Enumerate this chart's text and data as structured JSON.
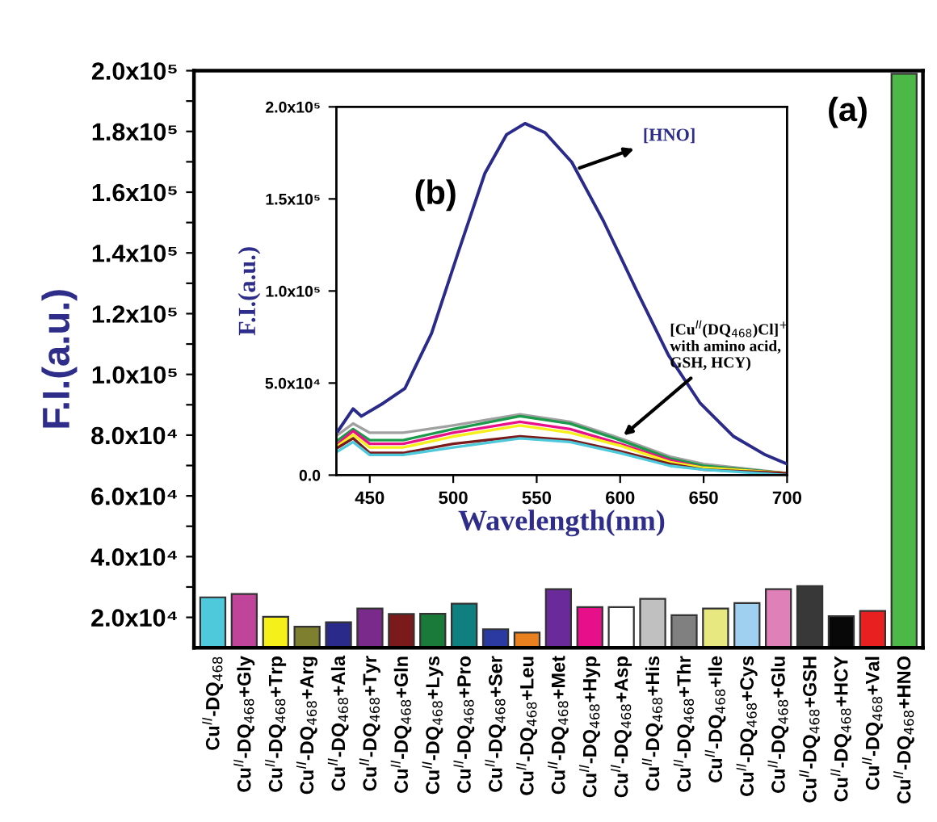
{
  "chart_data": [
    {
      "type": "bar",
      "ylabel": "F.I.(a.u.)",
      "annotations": [
        "(a)"
      ],
      "categories": [
        "Cu$^{II}$-DQ$_{468}$",
        "Cu$^{II}$-DQ$_{468}$+Gly",
        "Cu$^{II}$-DQ$_{468}$+Trp",
        "Cu$^{II}$-DQ$_{468}$+Arg",
        "Cu$^{II}$-DQ$_{468}$+Ala",
        "Cu$^{II}$-DQ$_{468}$+Tyr",
        "Cu$^{II}$-DQ$_{468}$+Gln",
        "Cu$^{II}$-DQ$_{468}$+Lys",
        "Cu$^{II}$-DQ$_{468}$+Pro",
        "Cu$^{II}$-DQ$_{468}$+Ser",
        "Cu$^{II}$-DQ$_{468}$+Leu",
        "Cu$^{II}$-DQ$_{468}$+Met",
        "Cu$^{II}$-DQ$_{468}$+Hyp",
        "Cu$^{II}$-DQ$_{468}$+Asp",
        "Cu$^{II}$-DQ$_{468}$+His",
        "Cu$^{II}$-DQ$_{468}$+Thr",
        "Cu$^{II}$-DQ$_{468}$+Ile",
        "Cu$^{II}$-DQ$_{468}$+Cys",
        "Cu$^{II}$-DQ$_{468}$+Glu",
        "Cu$^{II}$-DQ$_{468}$+GSH",
        "Cu$^{II}$-DQ$_{468}$+HCY",
        "Cu$^{II}$-DQ$_{468}$+Val",
        "Cu$^{II}$-DQ$_{468}$+HNO"
      ],
      "values": [
        26600,
        27700,
        20200,
        16900,
        18400,
        22900,
        21100,
        21200,
        24500,
        16100,
        15000,
        29300,
        23400,
        23400,
        26100,
        20700,
        22900,
        24700,
        29300,
        30300,
        20400,
        22100,
        199000
      ],
      "colors": [
        "#4ec9dc",
        "#c0449a",
        "#f5ef1a",
        "#7f7f30",
        "#2a2a8a",
        "#7a2a8a",
        "#7a1a1a",
        "#1a7a3a",
        "#0f7f7f",
        "#2a3aa0",
        "#e88020",
        "#6a2a9a",
        "#e8108a",
        "#ffffff",
        "#c0c0c0",
        "#808080",
        "#e8e880",
        "#a0d0f0",
        "#e080b8",
        "#383838",
        "#080808",
        "#e82020",
        "#4cb848"
      ],
      "ylim": [
        10000,
        200000
      ],
      "yticks": [
        {
          "value": 20000,
          "label": "2.0x10⁴"
        },
        {
          "value": 30000,
          "label": null
        },
        {
          "value": 40000,
          "label": "4.0x10⁴"
        },
        {
          "value": 50000,
          "label": null
        },
        {
          "value": 60000,
          "label": "6.0x10⁴"
        },
        {
          "value": 70000,
          "label": null
        },
        {
          "value": 80000,
          "label": "8.0x10⁴"
        },
        {
          "value": 90000,
          "label": null
        },
        {
          "value": 100000,
          "label": "1.0x10⁵"
        },
        {
          "value": 110000,
          "label": null
        },
        {
          "value": 120000,
          "label": "1.2x10⁵"
        },
        {
          "value": 130000,
          "label": null
        },
        {
          "value": 140000,
          "label": "1.4x10⁵"
        },
        {
          "value": 150000,
          "label": null
        },
        {
          "value": 160000,
          "label": "1.6x10⁵"
        },
        {
          "value": 170000,
          "label": null
        },
        {
          "value": 180000,
          "label": "1.8x10⁵"
        },
        {
          "value": 190000,
          "label": null
        },
        {
          "value": 200000,
          "label": "2.0x10⁵"
        }
      ],
      "grid": false
    },
    {
      "type": "line",
      "xlabel": "Wavelength(nm)",
      "ylabel": "F.I.(a.u.)",
      "annotations": [
        "(b)",
        "[HNO]",
        {
          "text": "[Cu$^{II}$(DQ$_{468}$)Cl]$^{+}$\nwith amino acid,\nGSH, HCY)",
          "x": 600,
          "y": 20000
        }
      ],
      "series": [
        {
          "color": "#2a2a8a",
          "x": [
            431,
            440,
            445,
            458,
            471,
            487,
            503,
            519,
            532,
            543,
            555,
            571,
            590,
            610,
            629,
            648,
            668,
            687,
            700
          ],
          "values": [
            24000,
            36000,
            32000,
            39000,
            47000,
            77000,
            121000,
            164000,
            185000,
            191000,
            186000,
            170000,
            138000,
            100000,
            65000,
            39000,
            21000,
            11000,
            6000
          ]
        },
        {
          "color": "#a0a0a0",
          "x": [
            431,
            440,
            450,
            470,
            500,
            540,
            570,
            600,
            630,
            650,
            700
          ],
          "values": [
            22000,
            28000,
            23000,
            23000,
            27000,
            33000,
            29000,
            20000,
            10000,
            6000,
            1000
          ]
        },
        {
          "color": "#1a9a4a",
          "x": [
            431,
            440,
            450,
            470,
            500,
            540,
            570,
            600,
            630,
            650,
            700
          ],
          "values": [
            19000,
            25000,
            19000,
            19000,
            25000,
            32000,
            28000,
            19000,
            9000,
            5000,
            1000
          ]
        },
        {
          "color": "#e8108a",
          "x": [
            431,
            440,
            450,
            470,
            500,
            540,
            570,
            600,
            630,
            650,
            700
          ],
          "values": [
            17000,
            24000,
            17000,
            17000,
            23000,
            29000,
            25000,
            17000,
            8000,
            4000,
            1000
          ]
        },
        {
          "color": "#f5ef1a",
          "x": [
            431,
            440,
            450,
            470,
            500,
            540,
            570,
            600,
            630,
            650,
            700
          ],
          "values": [
            16000,
            22000,
            15000,
            15000,
            21000,
            27000,
            23000,
            16000,
            7000,
            4000,
            1000
          ]
        },
        {
          "color": "#7a1a1a",
          "x": [
            431,
            440,
            450,
            470,
            500,
            540,
            570,
            600,
            630,
            650,
            700
          ],
          "values": [
            15000,
            20000,
            12000,
            12000,
            17000,
            21000,
            19000,
            13000,
            6000,
            3000,
            1000
          ]
        },
        {
          "color": "#4ec9dc",
          "x": [
            431,
            440,
            450,
            470,
            500,
            540,
            570,
            600,
            630,
            650,
            700
          ],
          "values": [
            13000,
            18000,
            11000,
            11000,
            15000,
            20000,
            18000,
            12000,
            5000,
            3000,
            0
          ]
        }
      ],
      "xlim": [
        430,
        700
      ],
      "xticks": [
        450,
        500,
        550,
        600,
        650,
        700
      ],
      "ylim": [
        0,
        200000
      ],
      "yticks": [
        {
          "value": 0,
          "label": "0.0"
        },
        {
          "value": 50000,
          "label": "5.0x10⁴"
        },
        {
          "value": 100000,
          "label": "1.0x10⁵"
        },
        {
          "value": 150000,
          "label": "1.5x10⁵"
        },
        {
          "value": 200000,
          "label": "2.0x10⁵"
        }
      ],
      "grid": false
    }
  ]
}
